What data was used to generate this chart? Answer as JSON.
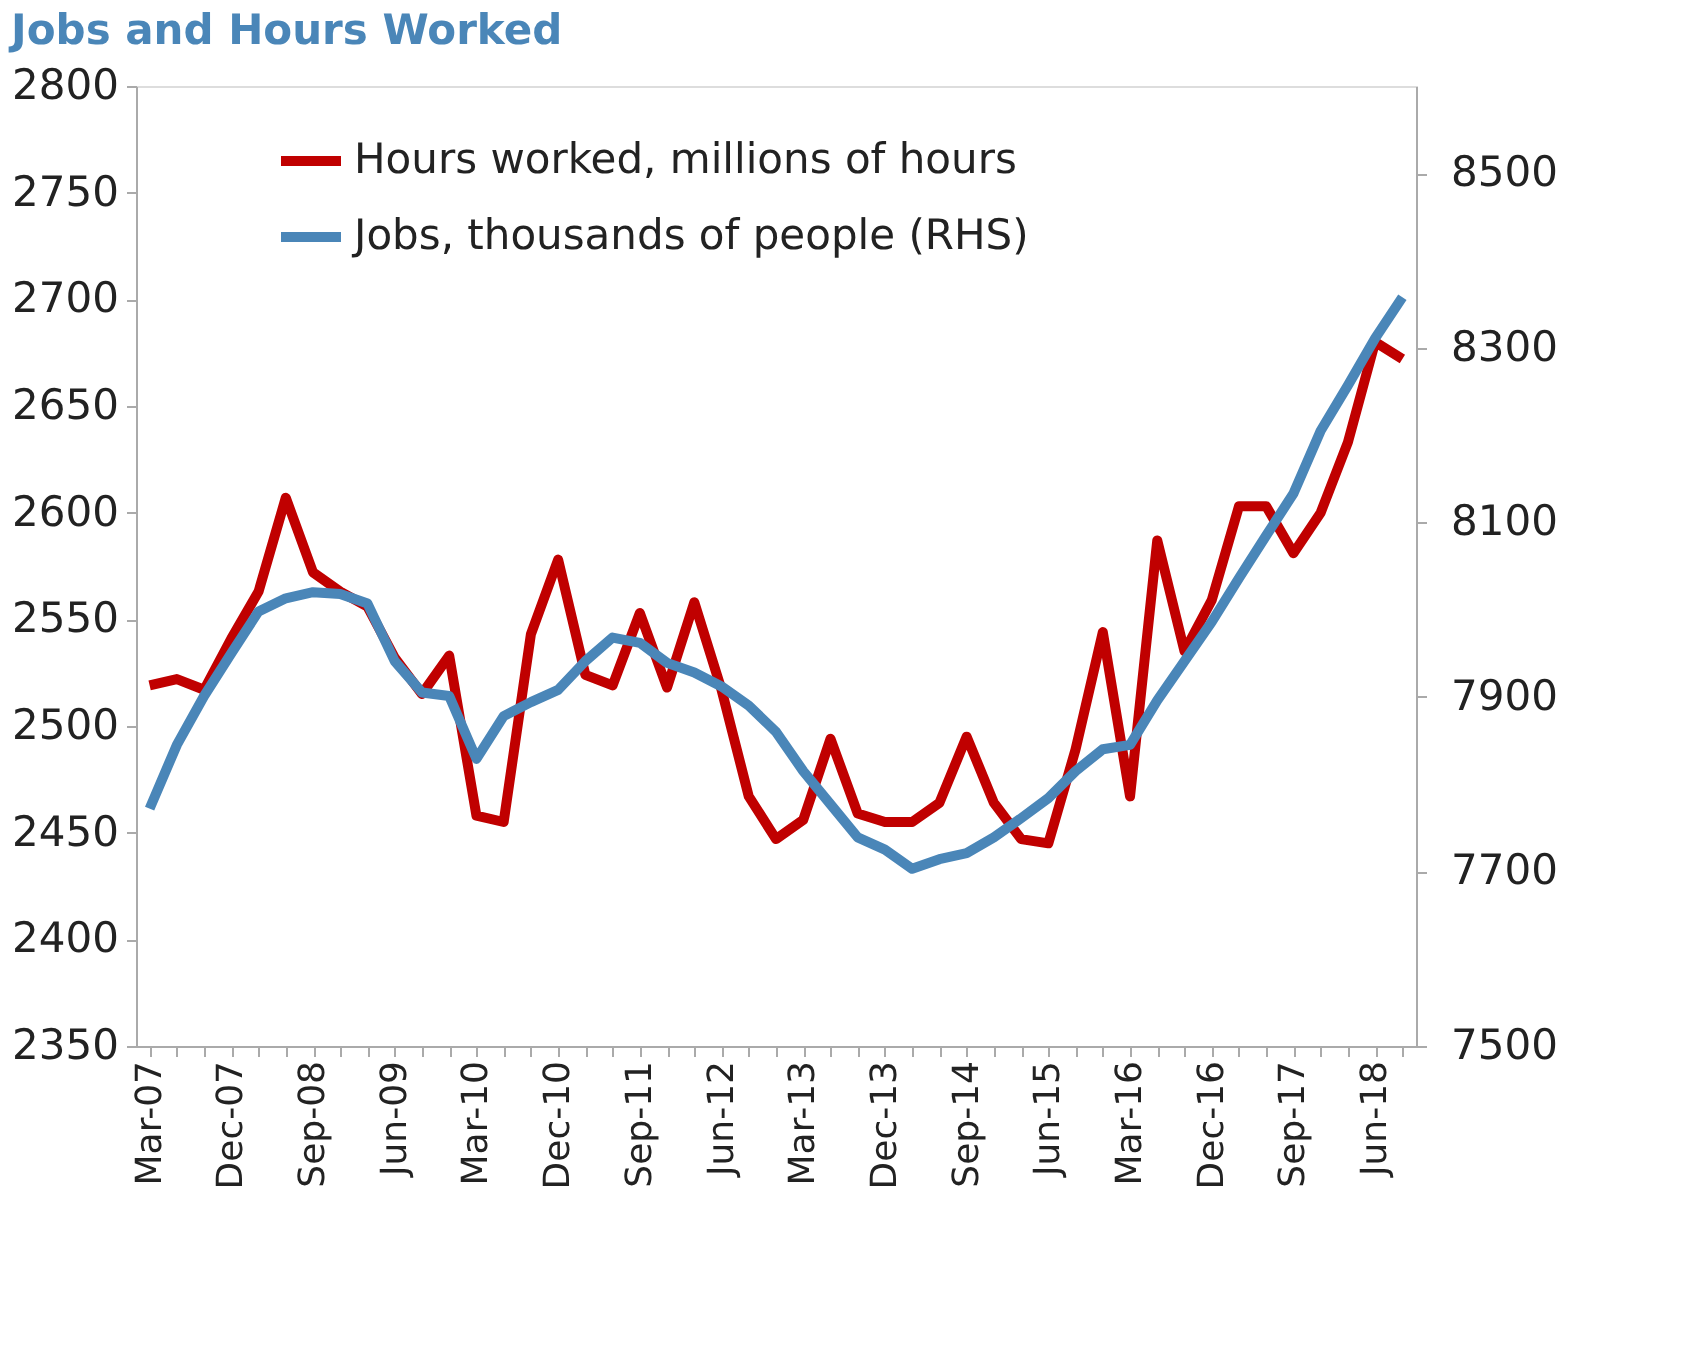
{
  "chart_data": {
    "type": "line",
    "title": "Jobs and Hours Worked",
    "categories": [
      "Mar-07",
      null,
      null,
      "Dec-07",
      null,
      null,
      "Sep-08",
      null,
      null,
      "Jun-09",
      null,
      null,
      "Mar-10",
      null,
      null,
      "Dec-10",
      null,
      null,
      "Sep-11",
      null,
      null,
      "Jun-12",
      null,
      null,
      "Mar-13",
      null,
      null,
      "Dec-13",
      null,
      null,
      "Sep-14",
      null,
      null,
      "Jun-15",
      null,
      null,
      "Mar-16",
      null,
      null,
      "Dec-16",
      null,
      null,
      "Sep-17",
      null,
      null,
      "Jun-18",
      null
    ],
    "series": [
      {
        "name": "Hours worked, millions of hours",
        "color": "#c00000",
        "values": [
          2519,
          2522,
          2517,
          2541,
          2563,
          2607,
          2572,
          2563,
          2556,
          2532,
          2515,
          2533,
          2458,
          2455,
          2543,
          2578,
          2524,
          2519,
          2553,
          2518,
          2558,
          2517,
          2467,
          2447,
          2456,
          2494,
          2459,
          2455,
          2455,
          2464,
          2495,
          2464,
          2447,
          2445,
          2489,
          2544,
          2467,
          2587,
          2535,
          2559,
          2603,
          2603,
          2581,
          2600,
          2633,
          2680,
          2672
        ]
      },
      {
        "name": "Jobs, thousands of people (RHS)",
        "color": "#4a86b8",
        "axis": "y2",
        "values": [
          7772,
          7845,
          7901,
          7950,
          7998,
          8013,
          8020,
          8018,
          8007,
          7941,
          7905,
          7901,
          7829,
          7878,
          7894,
          7908,
          7941,
          7968,
          7962,
          7939,
          7928,
          7912,
          7890,
          7860,
          7815,
          7777,
          7739,
          7725,
          7703,
          7714,
          7721,
          7739,
          7761,
          7784,
          7815,
          7840,
          7845,
          7896,
          7941,
          7986,
          8036,
          8085,
          8133,
          8205,
          8257,
          8311,
          8358
        ]
      }
    ],
    "ylim": [
      2350,
      2800
    ],
    "yticks": [
      2350,
      2400,
      2450,
      2500,
      2550,
      2600,
      2650,
      2700,
      2750,
      2800
    ],
    "y2lim": [
      7500,
      8600
    ],
    "y2ticks": [
      7500,
      7700,
      7900,
      8100,
      8300,
      8500
    ],
    "legend": "top",
    "grid": false,
    "line_style": "solid",
    "marker": "none"
  }
}
